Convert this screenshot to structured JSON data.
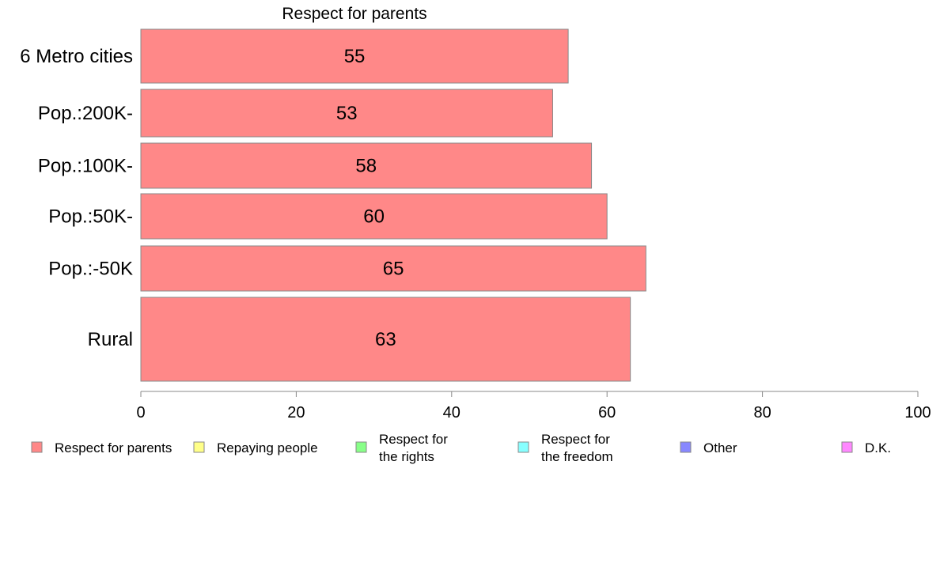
{
  "chart_data": {
    "type": "bar",
    "orientation": "horizontal",
    "title": "Respect for parents",
    "categories": [
      "6 Metro cities",
      "Pop.:200K-",
      "Pop.:100K-",
      "Pop.:50K-",
      "Pop.:-50K",
      "Rural"
    ],
    "values": [
      55,
      53,
      58,
      60,
      65,
      63
    ],
    "xlim": [
      0,
      100
    ],
    "x_ticks": [
      "0",
      "20",
      "40",
      "60",
      "80",
      "100"
    ],
    "xlabel": "",
    "ylabel": "",
    "grid": false,
    "bar_color": "#ff8888",
    "bar_edge_color": "#888888",
    "legend": {
      "placement": "bottom",
      "entries": [
        {
          "label": [
            "Respect for parents"
          ],
          "color": "#ff8888"
        },
        {
          "label": [
            "Repaying people"
          ],
          "color": "#ffff88"
        },
        {
          "label": [
            "Respect for",
            "the rights"
          ],
          "color": "#88ff88"
        },
        {
          "label": [
            "Respect for",
            "the freedom"
          ],
          "color": "#88ffff"
        },
        {
          "label": [
            "Other"
          ],
          "color": "#8888ff"
        },
        {
          "label": [
            "D.K."
          ],
          "color": "#ff88ff"
        }
      ]
    }
  }
}
